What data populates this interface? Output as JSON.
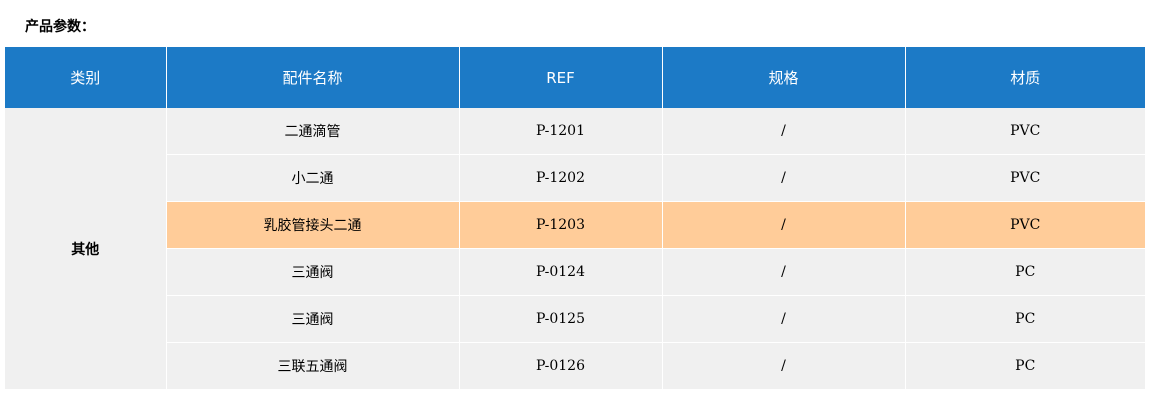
{
  "title": "产品参数：",
  "colors": {
    "header_bg": "#1c7ac6",
    "row_bg": "#f0f0f0",
    "highlight_bg": "#ffcc99"
  },
  "table": {
    "headers": [
      "类别",
      "配件名称",
      "REF",
      "规格",
      "材质"
    ],
    "category": "其他",
    "highlight_index": 2,
    "rows": [
      {
        "name": "二通滴管",
        "ref": "P-1201",
        "spec": "/",
        "material": "PVC"
      },
      {
        "name": "小二通",
        "ref": "P-1202",
        "spec": "/",
        "material": "PVC"
      },
      {
        "name": "乳胶管接头二通",
        "ref": "P-1203",
        "spec": "/",
        "material": "PVC"
      },
      {
        "name": "三通阀",
        "ref": "P-0124",
        "spec": "/",
        "material": "PC"
      },
      {
        "name": "三通阀",
        "ref": "P-0125",
        "spec": "/",
        "material": "PC"
      },
      {
        "name": "三联五通阀",
        "ref": "P-0126",
        "spec": "/",
        "material": "PC"
      }
    ]
  }
}
